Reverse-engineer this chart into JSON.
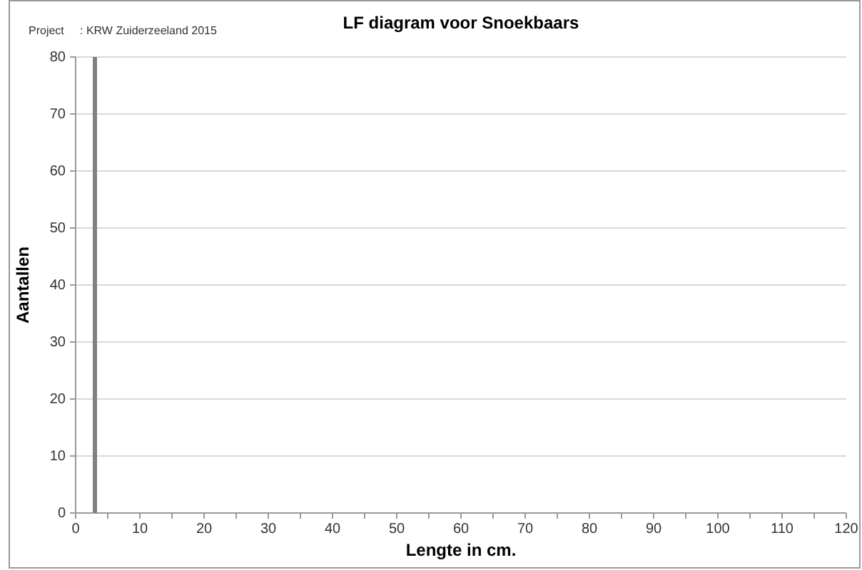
{
  "chart_data": {
    "type": "bar",
    "title": "LF diagram voor Snoekbaars",
    "xlabel": "Lengte in cm.",
    "ylabel": "Aantallen",
    "annotations": [
      "Project     : KRW Zuiderzeeland 2015"
    ],
    "x": [
      3
    ],
    "values": [
      80
    ],
    "color": "#808080",
    "xlim": [
      0,
      120
    ],
    "xticks": [
      0,
      {
        "value": 5,
        "label": null
      },
      10,
      {
        "value": 15,
        "label": null
      },
      20,
      {
        "value": 25,
        "label": null
      },
      30,
      {
        "value": 35,
        "label": null
      },
      40,
      {
        "value": 45,
        "label": null
      },
      50,
      {
        "value": 55,
        "label": null
      },
      60,
      {
        "value": 65,
        "label": null
      },
      70,
      {
        "value": 75,
        "label": null
      },
      80,
      {
        "value": 85,
        "label": null
      },
      90,
      {
        "value": 95,
        "label": null
      },
      100,
      {
        "value": 105,
        "label": null
      },
      110,
      {
        "value": 115,
        "label": null
      },
      120
    ],
    "ylim": [
      0,
      80
    ],
    "yticks": [
      0,
      10,
      20,
      30,
      40,
      50,
      60,
      70,
      80
    ],
    "grid": "y"
  }
}
